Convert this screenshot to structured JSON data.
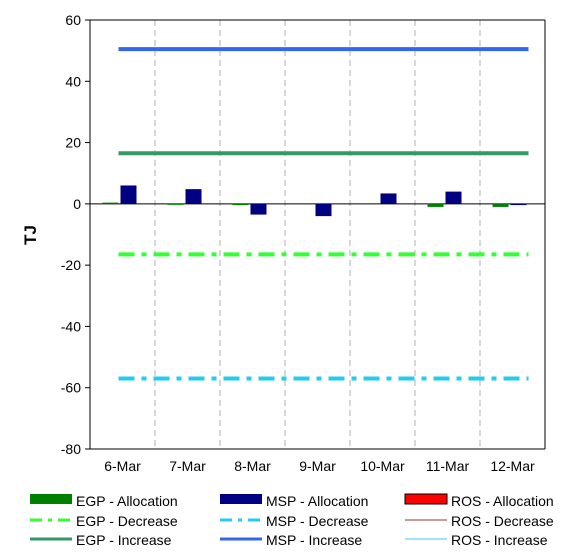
{
  "chart_data": {
    "type": "bar",
    "title": "",
    "xlabel": "",
    "ylabel": "TJ",
    "ylim": [
      -80,
      60
    ],
    "yticks": [
      60,
      40,
      20,
      0,
      -20,
      -40,
      -60,
      -80
    ],
    "grid": "vertical dashed",
    "legend_position": "bottom",
    "categories": [
      "6-Mar",
      "7-Mar",
      "8-Mar",
      "9-Mar",
      "10-Mar",
      "11-Mar",
      "12-Mar"
    ],
    "bar_series": [
      {
        "name": "EGP - Allocation",
        "color": "#008000",
        "values": [
          0.4,
          -0.3,
          -0.4,
          0.0,
          0.0,
          -1.0,
          -1.0
        ]
      },
      {
        "name": "MSP - Allocation",
        "color": "#000080",
        "values": [
          6.0,
          4.8,
          -3.5,
          -4.0,
          3.4,
          4.0,
          -0.4
        ]
      },
      {
        "name": "ROS - Allocation",
        "color": "#ff0000",
        "values": [
          0,
          0,
          0,
          0,
          0,
          0,
          0
        ]
      }
    ],
    "line_series": [
      {
        "name": "EGP - Decrease",
        "color": "#33ff33",
        "style": "dashdot",
        "values": [
          -16.5,
          -16.5,
          -16.5,
          -16.5,
          -16.5,
          -16.5,
          -16.5
        ]
      },
      {
        "name": "MSP - Decrease",
        "color": "#22ccee",
        "style": "dashdot",
        "values": [
          -57,
          -57,
          -57,
          -57,
          -57,
          -57,
          -57
        ]
      },
      {
        "name": "ROS - Decrease",
        "color": "#993333",
        "style": "solid",
        "values": null
      },
      {
        "name": "EGP - Increase",
        "color": "#339966",
        "style": "solid",
        "values": [
          16.5,
          16.5,
          16.5,
          16.5,
          16.5,
          16.5,
          16.5
        ]
      },
      {
        "name": "MSP - Increase",
        "color": "#3366ee",
        "style": "solid",
        "values": [
          50.5,
          50.5,
          50.5,
          50.5,
          50.5,
          50.5,
          50.5
        ]
      },
      {
        "name": "ROS - Increase",
        "color": "#33ccff",
        "style": "solid",
        "values": null
      }
    ],
    "legend_order": [
      "EGP - Allocation",
      "MSP - Allocation",
      "ROS - Allocation",
      "EGP - Decrease",
      "MSP - Decrease",
      "ROS - Decrease",
      "EGP - Increase",
      "MSP - Increase",
      "ROS - Increase"
    ]
  }
}
